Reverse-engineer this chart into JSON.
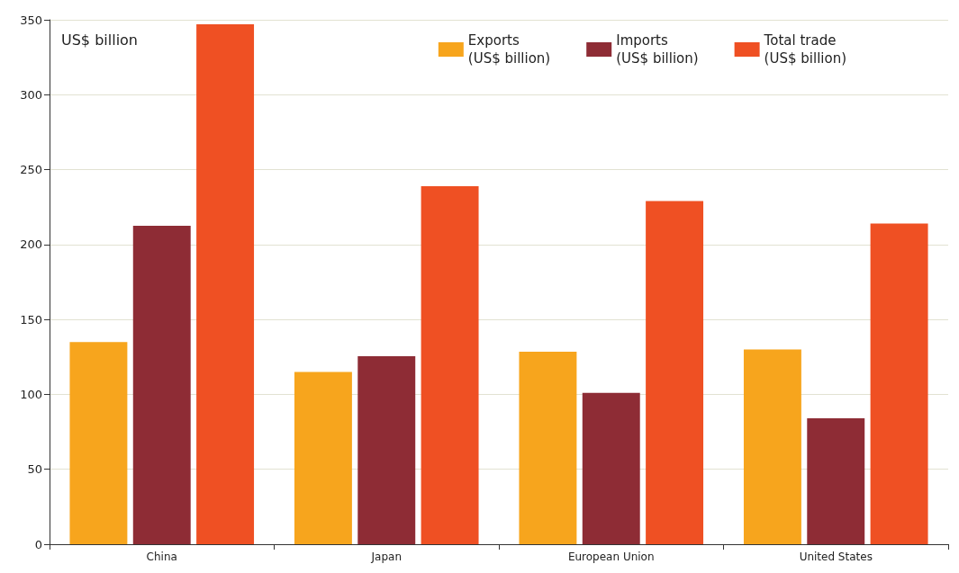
{
  "chart_data": {
    "type": "bar",
    "ylabel": "US$ billion",
    "categories": [
      "China",
      "Japan",
      "European Union",
      "United States"
    ],
    "series": [
      {
        "name": "Exports\n(US$ billion)",
        "color": "#f7a51d",
        "values": [
          135,
          115,
          128.5,
          130
        ]
      },
      {
        "name": "Imports\n(US$ billion)",
        "color": "#8e2c35",
        "values": [
          212.5,
          125.5,
          101,
          84
        ]
      },
      {
        "name": "Total trade\n(US$ billion)",
        "color": "#ef5023",
        "values": [
          347,
          239,
          229,
          214
        ]
      }
    ],
    "ylim": [
      0,
      350
    ],
    "yticks": [
      0,
      50,
      100,
      150,
      200,
      250,
      300,
      350
    ],
    "grid": "y",
    "legend": "top right"
  }
}
